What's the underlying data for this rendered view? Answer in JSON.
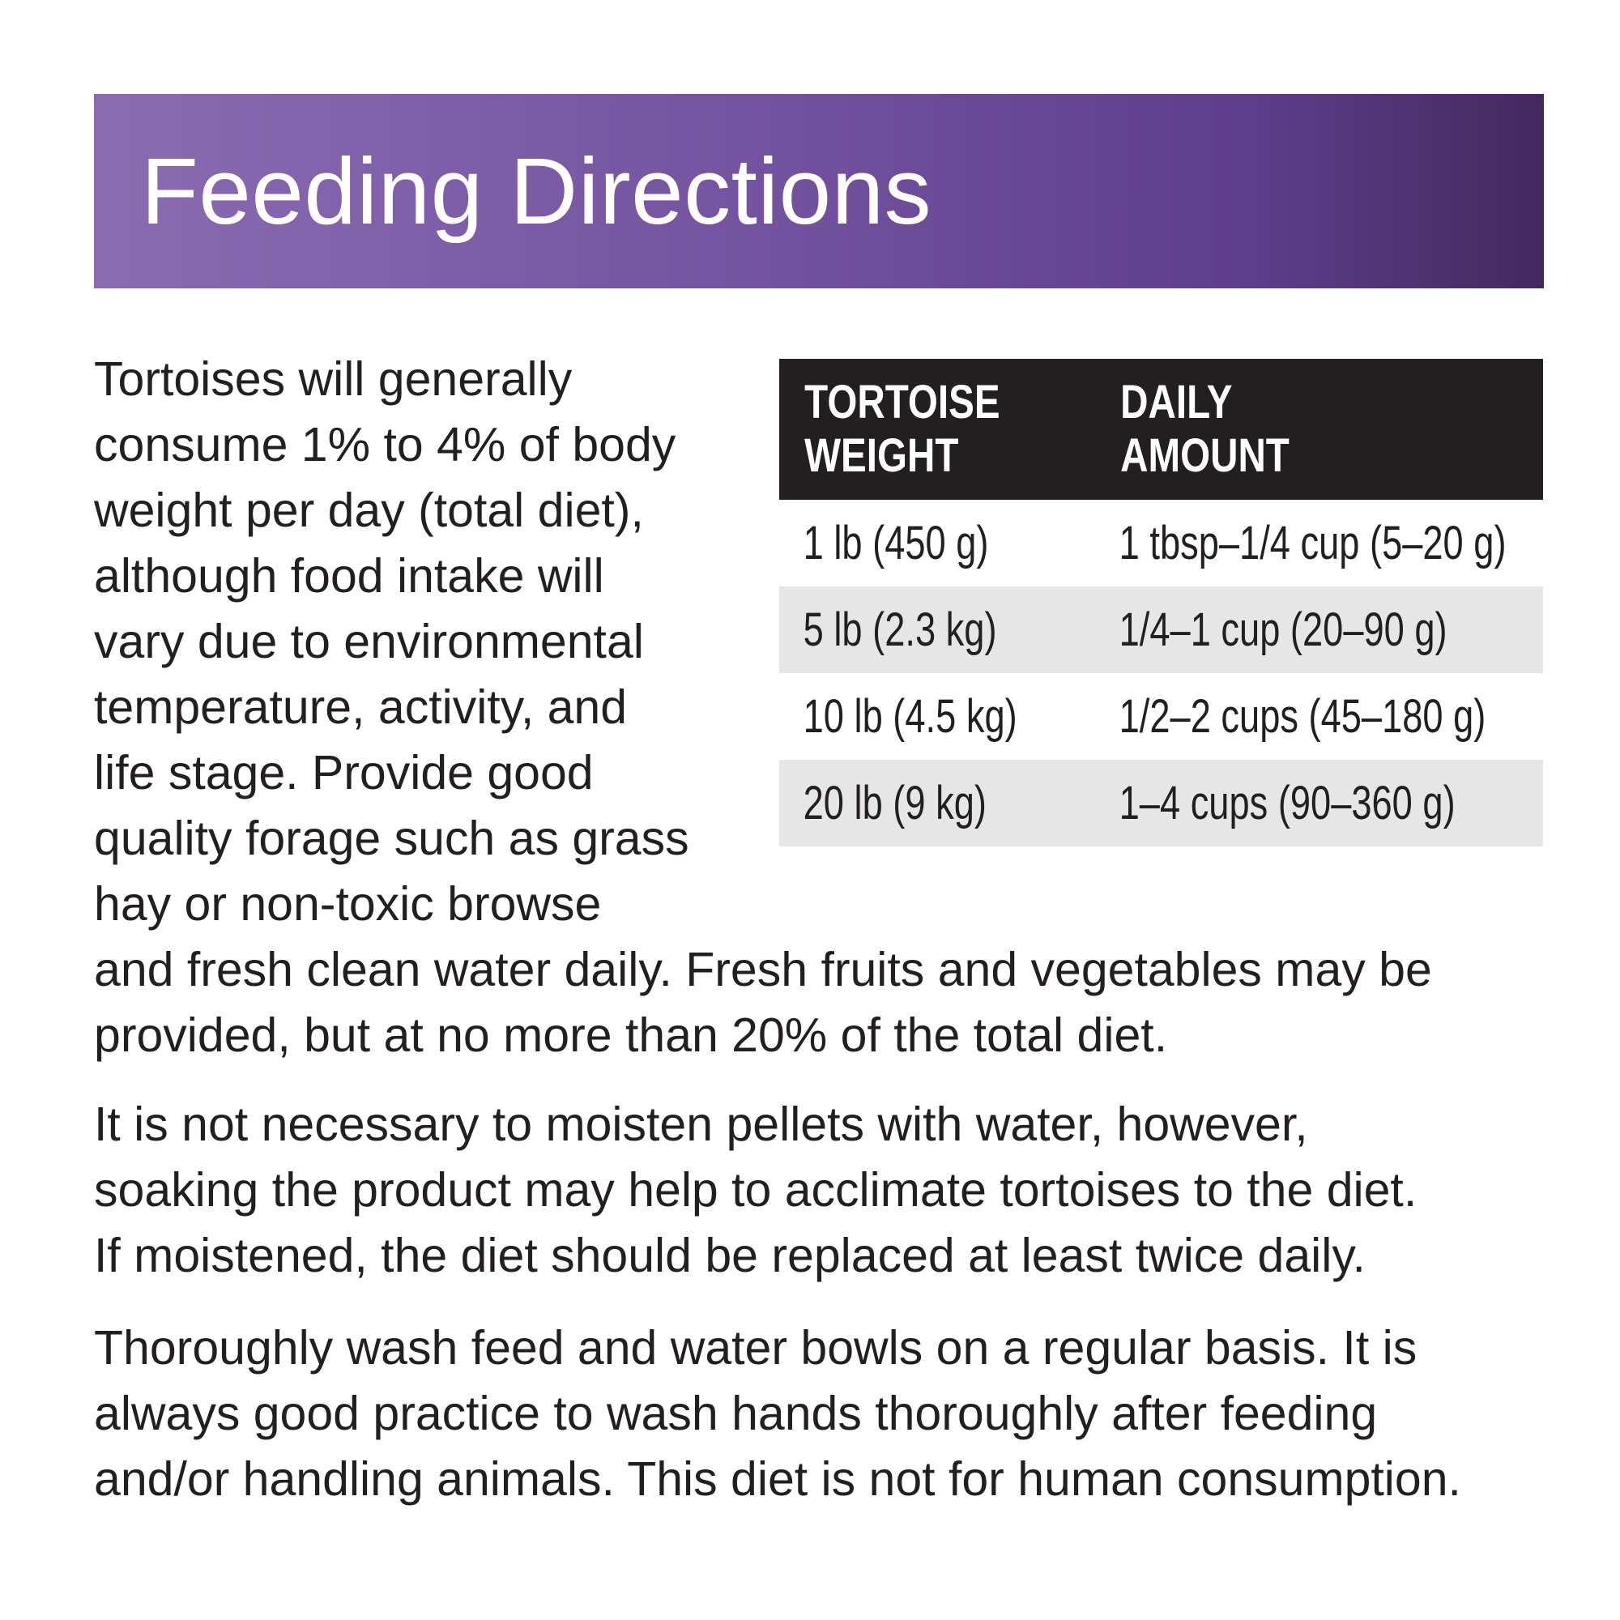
{
  "header": {
    "title": "Feeding Directions",
    "gradient_colors": [
      "#8a6cb2",
      "#45285f"
    ]
  },
  "table": {
    "headers": [
      [
        "TORTOISE",
        "WEIGHT"
      ],
      [
        "DAILY",
        "AMOUNT"
      ]
    ],
    "rows": [
      {
        "weight": "1 lb (450 g)",
        "amount": "1 tbsp–1/4 cup (5–20 g)"
      },
      {
        "weight": "5 lb (2.3 kg)",
        "amount": "1/4–1 cup (20–90 g)"
      },
      {
        "weight": "10 lb (4.5 kg)",
        "amount": "1/2–2 cups (45–180 g)"
      },
      {
        "weight": "20 lb (9 kg)",
        "amount": "1–4 cups (90–360 g)"
      }
    ],
    "header_bg": "#231f20",
    "shaded_row_bg": "#e6e6e6"
  },
  "paragraphs": [
    [
      "Tortoises will generally",
      "consume 1% to 4% of body",
      "weight per day (total diet),",
      "although food intake will",
      "vary due to environmental",
      "temperature, activity, and",
      "life stage. Provide good",
      "quality forage such as grass",
      "hay or non-toxic browse",
      "and fresh clean water daily. Fresh fruits and vegetables may be",
      "provided, but at no more than 20% of the total diet."
    ],
    [
      "It is not necessary to moisten pellets with water, however,",
      "soaking the product may help to acclimate tortoises to the diet.",
      "If moistened, the diet should be replaced at least twice daily."
    ],
    [
      "Thoroughly wash feed and water bowls on a regular basis. It is",
      "always good practice to wash hands thoroughly after feeding",
      "and/or handling animals. This diet is not for human consumption."
    ]
  ]
}
